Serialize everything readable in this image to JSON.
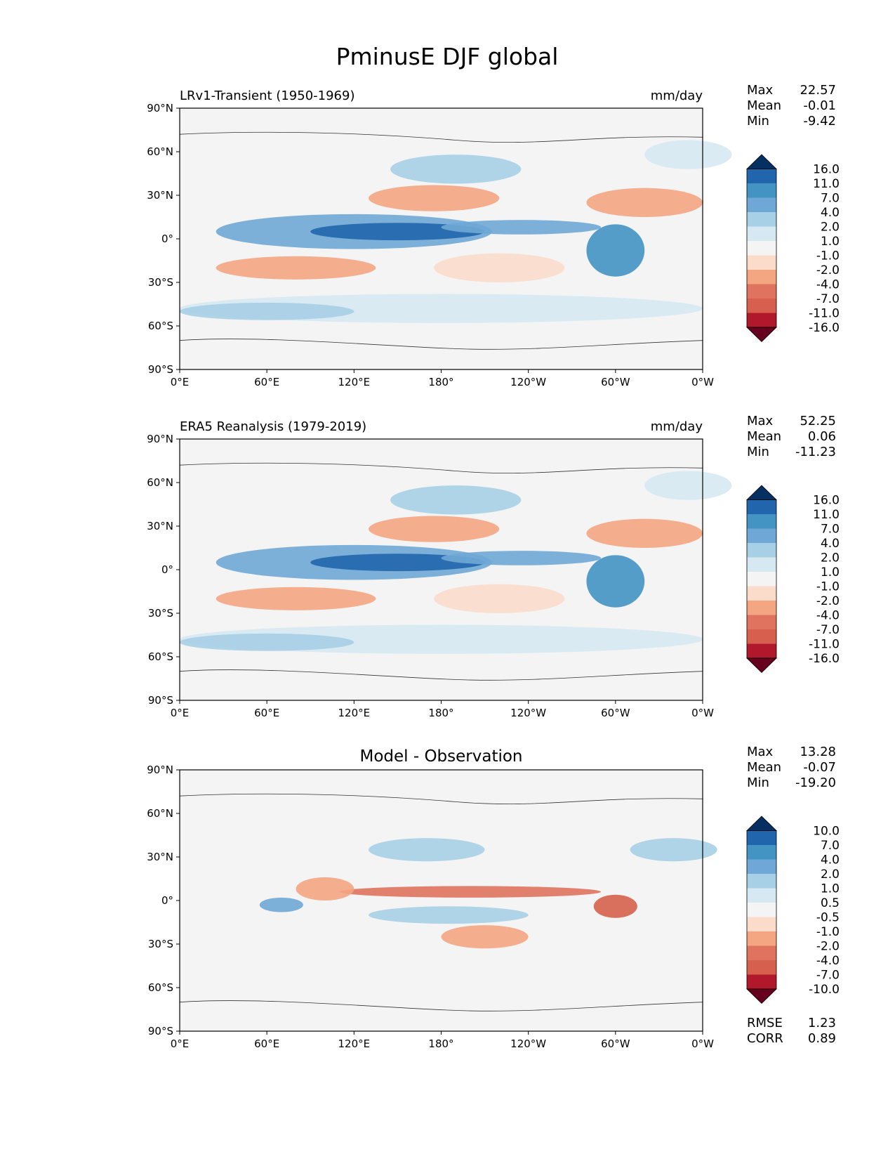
{
  "title": "PminusE DJF global",
  "chart_data": [
    {
      "type": "heatmap",
      "title": "LRv1-Transient (1950-1969)",
      "units": "mm/day",
      "stats": [
        {
          "label": "Max",
          "value": "22.57"
        },
        {
          "label": "Mean",
          "value": "-0.01"
        },
        {
          "label": "Min",
          "value": "-9.42"
        }
      ],
      "colorbar_levels": [
        "16.0",
        "11.0",
        "7.0",
        "4.0",
        "2.0",
        "1.0",
        "-1.0",
        "-2.0",
        "-4.0",
        "-7.0",
        "-11.0",
        "-16.0"
      ],
      "colorbar_colors": [
        "#053061",
        "#2166ac",
        "#4393c3",
        "#6fa8d6",
        "#a7cfe5",
        "#d6e9f3",
        "#f4f4f4",
        "#fbdccb",
        "#f4a582",
        "#e0735f",
        "#d6604d",
        "#b2182b",
        "#67001f"
      ],
      "xticks": [
        "0°E",
        "60°E",
        "120°E",
        "180°",
        "120°W",
        "60°W",
        "0°W"
      ],
      "yticks": [
        "90°N",
        "60°N",
        "30°N",
        "0°",
        "30°S",
        "60°S",
        "90°S"
      ],
      "xlim": [
        0,
        360
      ],
      "ylim": [
        -90,
        90
      ]
    },
    {
      "type": "heatmap",
      "title": "ERA5 Reanalysis (1979-2019)",
      "units": "mm/day",
      "stats": [
        {
          "label": "Max",
          "value": "52.25"
        },
        {
          "label": "Mean",
          "value": "0.06"
        },
        {
          "label": "Min",
          "value": "-11.23"
        }
      ],
      "colorbar_levels": [
        "16.0",
        "11.0",
        "7.0",
        "4.0",
        "2.0",
        "1.0",
        "-1.0",
        "-2.0",
        "-4.0",
        "-7.0",
        "-11.0",
        "-16.0"
      ],
      "colorbar_colors": [
        "#053061",
        "#2166ac",
        "#4393c3",
        "#6fa8d6",
        "#a7cfe5",
        "#d6e9f3",
        "#f4f4f4",
        "#fbdccb",
        "#f4a582",
        "#e0735f",
        "#d6604d",
        "#b2182b",
        "#67001f"
      ],
      "xticks": [
        "0°E",
        "60°E",
        "120°E",
        "180°",
        "120°W",
        "60°W",
        "0°W"
      ],
      "yticks": [
        "90°N",
        "60°N",
        "30°N",
        "0°",
        "30°S",
        "60°S",
        "90°S"
      ],
      "xlim": [
        0,
        360
      ],
      "ylim": [
        -90,
        90
      ]
    },
    {
      "type": "heatmap",
      "title": "Model - Observation",
      "units": "",
      "stats": [
        {
          "label": "Max",
          "value": "13.28"
        },
        {
          "label": "Mean",
          "value": "-0.07"
        },
        {
          "label": "Min",
          "value": "-19.20"
        }
      ],
      "colorbar_levels": [
        "10.0",
        "7.0",
        "4.0",
        "2.0",
        "1.0",
        "0.5",
        "-0.5",
        "-1.0",
        "-2.0",
        "-4.0",
        "-7.0",
        "-10.0"
      ],
      "colorbar_colors": [
        "#053061",
        "#2166ac",
        "#4393c3",
        "#6fa8d6",
        "#a7cfe5",
        "#d6e9f3",
        "#f4f4f4",
        "#fbdccb",
        "#f4a582",
        "#e0735f",
        "#d6604d",
        "#b2182b",
        "#67001f"
      ],
      "xticks": [
        "0°E",
        "60°E",
        "120°E",
        "180°",
        "120°W",
        "60°W",
        "0°W"
      ],
      "yticks": [
        "90°N",
        "60°N",
        "30°N",
        "0°",
        "30°S",
        "60°S",
        "90°S"
      ],
      "xlim": [
        0,
        360
      ],
      "ylim": [
        -90,
        90
      ],
      "metrics": [
        {
          "label": "RMSE",
          "value": "1.23"
        },
        {
          "label": "CORR",
          "value": "0.89"
        }
      ]
    }
  ]
}
